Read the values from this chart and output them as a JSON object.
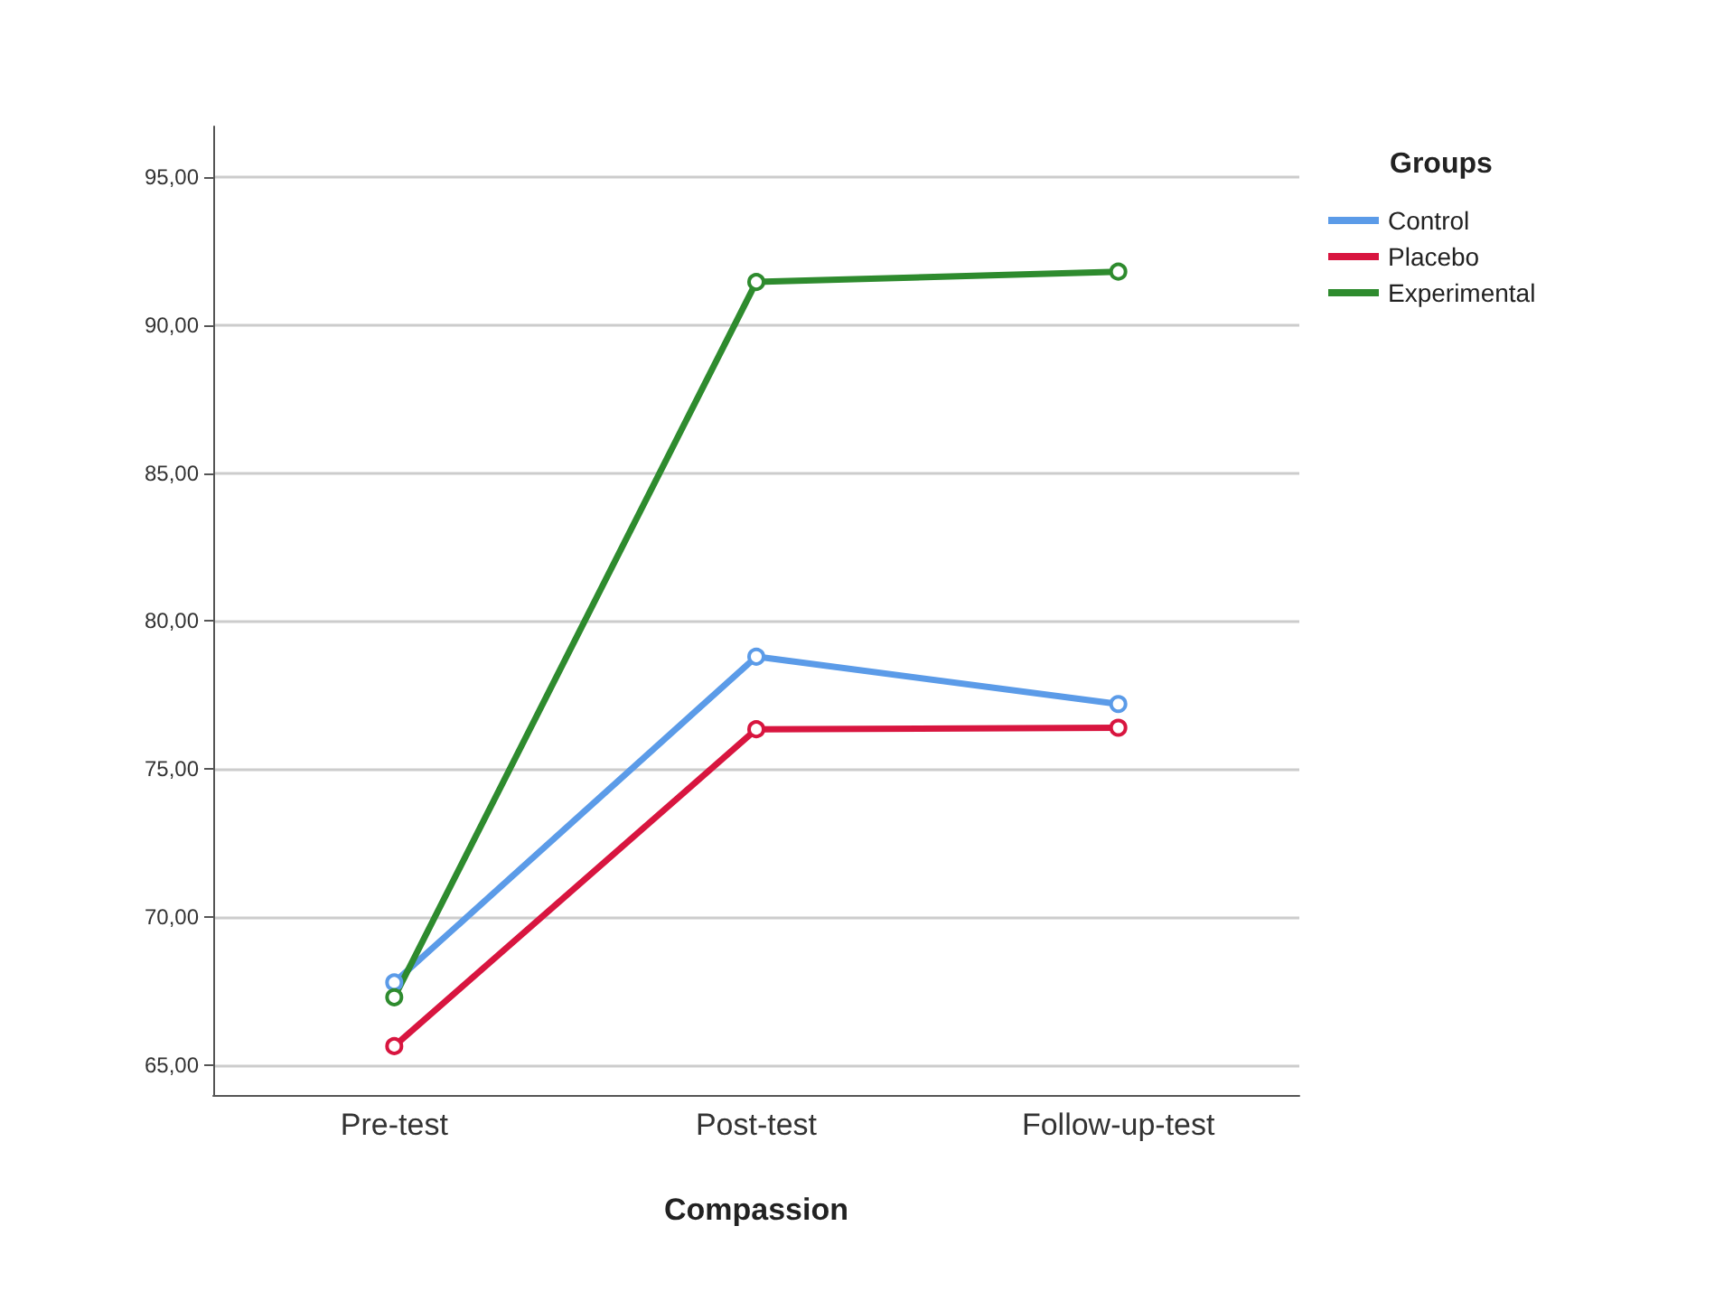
{
  "chart_data": {
    "type": "line",
    "xlabel": "Compassion",
    "legend_title": "Groups",
    "categories": [
      "Pre-test",
      "Post-test",
      "Follow-up-test"
    ],
    "series": [
      {
        "name": "Control",
        "color": "#5b9be8",
        "values": [
          67.8,
          78.8,
          77.2
        ]
      },
      {
        "name": "Placebo",
        "color": "#d8153f",
        "values": [
          65.65,
          76.35,
          76.4
        ]
      },
      {
        "name": "Experimental",
        "color": "#2e8b2e",
        "values": [
          67.3,
          91.45,
          91.8
        ]
      }
    ],
    "ylim": [
      64,
      96.7
    ],
    "yticks": [
      {
        "value": 65,
        "label": "65,00"
      },
      {
        "value": 70,
        "label": "70,00"
      },
      {
        "value": 75,
        "label": "75,00"
      },
      {
        "value": 80,
        "label": "80,00"
      },
      {
        "value": 85,
        "label": "85,00"
      },
      {
        "value": 90,
        "label": "90,00"
      },
      {
        "value": 95,
        "label": "95,00"
      }
    ],
    "grid": "y",
    "legend": "top right",
    "marker": "circle",
    "line_style": "solid"
  }
}
